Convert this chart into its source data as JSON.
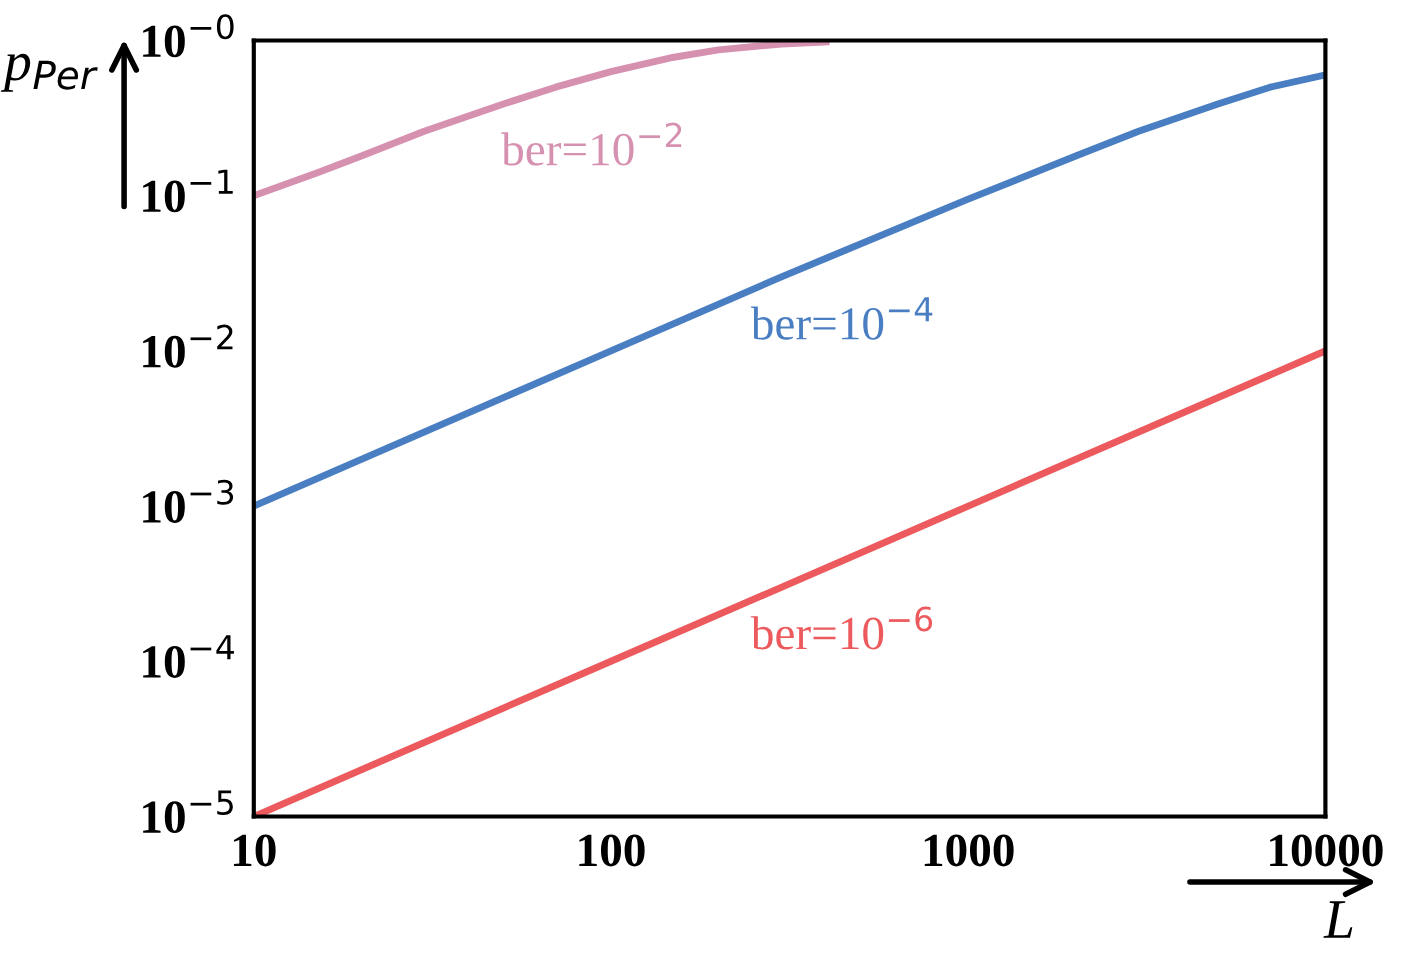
{
  "chart_data": {
    "type": "line",
    "xlabel": "L",
    "ylabel": "p$_{Per}$",
    "log": "xy",
    "xlim": [
      10,
      10000
    ],
    "xticks": [
      10,
      100,
      1000,
      10000
    ],
    "ylim": [
      1e-05,
      1
    ],
    "yticks": [
      {
        "value": 1,
        "label": "10$^{−0}$"
      },
      {
        "value": 0.1,
        "label": "10$^{−1}$"
      },
      {
        "value": 0.01,
        "label": "10$^{−2}$"
      },
      {
        "value": 0.001,
        "label": "10$^{−3}$"
      },
      {
        "value": 0.0001,
        "label": "10$^{−4}$"
      },
      {
        "value": 1e-05,
        "label": "10$^{−5}$"
      }
    ],
    "grid": false,
    "legend": false,
    "marker": "none",
    "line_style": "solid",
    "series": [
      {
        "name": "ber=10$^{−2}$",
        "color": "#d690b0",
        "x": [
          10,
          15,
          20,
          30,
          50,
          70,
          100,
          150,
          200,
          300,
          400
        ],
        "values": [
          0.1,
          0.14,
          0.18,
          0.26,
          0.39,
          0.5,
          0.63,
          0.78,
          0.87,
          0.95,
          0.98
        ]
      },
      {
        "name": "ber=10$^{−4}$",
        "color": "#4a7ec2",
        "x": [
          10,
          100,
          300,
          1000,
          2000,
          3000,
          5000,
          7000,
          10000
        ],
        "values": [
          0.001,
          0.01,
          0.03,
          0.095,
          0.18,
          0.26,
          0.39,
          0.5,
          0.6
        ]
      },
      {
        "name": "ber=10$^{−6}$",
        "color": "#ec5a5e",
        "x": [
          10,
          100,
          1000,
          10000
        ],
        "values": [
          1e-05,
          0.0001,
          0.001,
          0.01
        ]
      }
    ]
  }
}
